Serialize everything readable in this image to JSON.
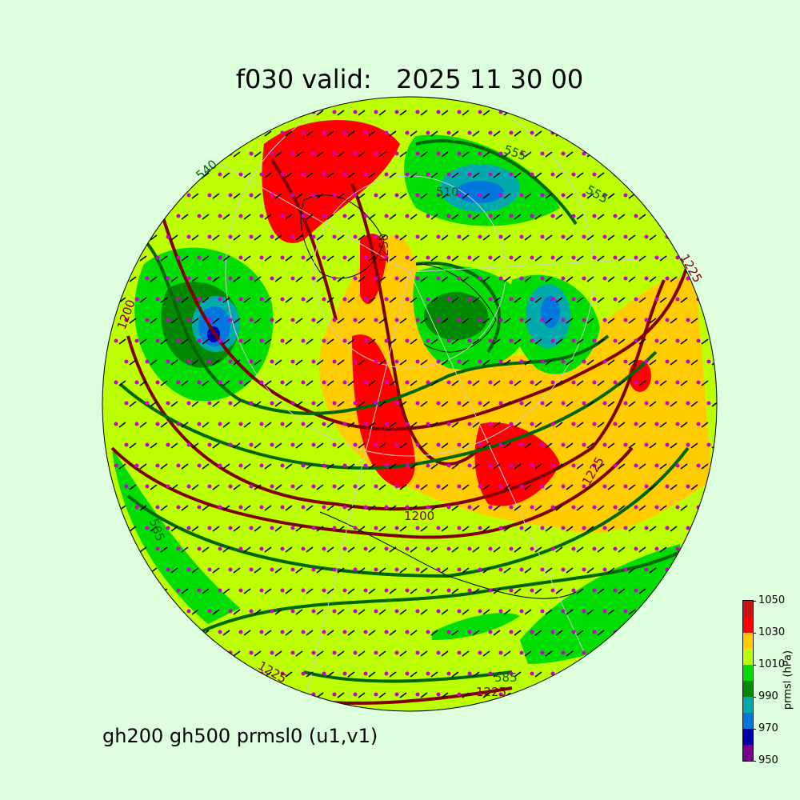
{
  "title": "f030 valid:   2025 11 30 00",
  "subtitle": "gh200 gh500 prmsl0 (u1,v1)",
  "colorbar": {
    "label": "prmsl (hPa)",
    "ticks": [
      "1050",
      "1030",
      "1010",
      "990",
      "970",
      "950"
    ],
    "levels": [
      950,
      960,
      970,
      980,
      990,
      1000,
      1010,
      1020,
      1030,
      1040,
      1050
    ],
    "colors": [
      "#770088",
      "#0000aa",
      "#0077dd",
      "#00aaaa",
      "#008800",
      "#00dd00",
      "#bbff00",
      "#ffcc00",
      "#ff0000",
      "#cc1111"
    ]
  },
  "contour_labels": {
    "gh200": [
      "1200",
      "1225",
      "1225",
      "1225",
      "1250",
      "1200",
      "1225"
    ],
    "gh500": [
      "555",
      "585",
      "510",
      "540",
      "555",
      "585"
    ]
  },
  "colors": {
    "gh200": "#800000",
    "gh500": "#006600",
    "wind_dots": "#cc00cc",
    "background": "#ddffdd"
  }
}
